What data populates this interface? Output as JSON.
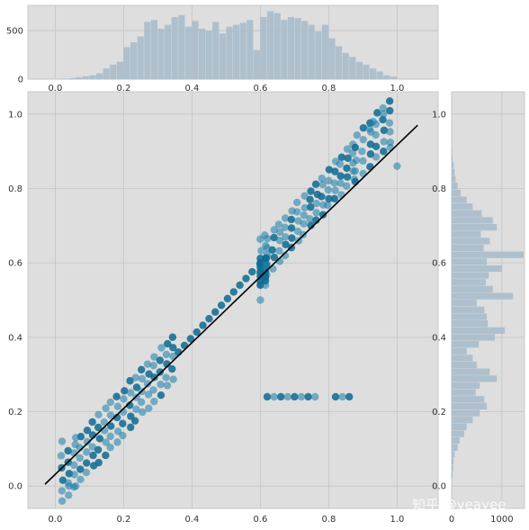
{
  "chart_data": [
    {
      "type": "bar",
      "role": "top-marginal-histogram",
      "xlim": [
        -0.08,
        1.12
      ],
      "ylim": [
        0,
        760
      ],
      "yticks": [
        0,
        500
      ],
      "xticks": [
        "0.0",
        "0.2",
        "0.4",
        "0.6",
        "0.8",
        "1.0"
      ],
      "bin_start": 0.02,
      "bin_width": 0.02,
      "values": [
        5,
        10,
        20,
        30,
        40,
        60,
        110,
        150,
        180,
        330,
        380,
        440,
        590,
        610,
        520,
        560,
        640,
        660,
        540,
        600,
        520,
        500,
        590,
        470,
        540,
        560,
        580,
        610,
        300,
        640,
        700,
        680,
        610,
        640,
        630,
        600,
        560,
        490,
        560,
        420,
        340,
        270,
        230,
        180,
        150,
        110,
        80,
        40,
        25
      ]
    },
    {
      "type": "scatter",
      "role": "main-scatter",
      "xlim": [
        -0.08,
        1.12
      ],
      "ylim": [
        -0.06,
        1.06
      ],
      "xticks": [
        "0.0",
        "0.2",
        "0.4",
        "0.6",
        "0.8",
        "1.0"
      ],
      "yticks": [
        "0.0",
        "0.2",
        "0.4",
        "0.6",
        "0.8",
        "1.0"
      ],
      "grid": true,
      "fit_line": {
        "x": [
          -0.03,
          1.06
        ],
        "y": [
          0.005,
          0.97
        ]
      },
      "clusters": [
        {
          "x0": 0.02,
          "x1": 0.36,
          "dy": 0.06,
          "step": 0.018
        },
        {
          "x0": 0.36,
          "x1": 0.58,
          "dy": 0.0,
          "step": 0.018
        },
        {
          "x0": 0.6,
          "x1": 0.62,
          "dy": 0.06,
          "step": 0.015
        },
        {
          "x0": 0.62,
          "x1": 0.88,
          "dy": 0.05,
          "step": 0.018
        },
        {
          "x0": 0.88,
          "x1": 0.98,
          "dy": 0.06,
          "step": 0.02
        }
      ],
      "outlier_row": {
        "y": 0.24,
        "x": [
          0.62,
          0.64,
          0.66,
          0.68,
          0.7,
          0.72,
          0.74,
          0.76,
          0.82,
          0.84,
          0.86
        ]
      },
      "extra_points": [
        [
          0.02,
          0.12
        ],
        [
          0.04,
          0.0
        ],
        [
          0.06,
          0.0
        ],
        [
          0.96,
          1.0
        ],
        [
          1.0,
          0.86
        ],
        [
          0.98,
          0.91
        ],
        [
          0.93,
          0.98
        ],
        [
          0.6,
          0.5
        ],
        [
          0.06,
          0.13
        ],
        [
          0.92,
          0.96
        ]
      ]
    },
    {
      "type": "bar",
      "role": "right-marginal-histogram",
      "orientation": "horizontal",
      "ylim": [
        -0.06,
        1.06
      ],
      "xlim": [
        0,
        1450
      ],
      "xticks": [
        0,
        1000
      ],
      "yticks": [
        "0.0",
        "0.2",
        "0.4",
        "0.6",
        "0.8",
        "1.0"
      ],
      "bin_start": 0.02,
      "bin_width": 0.0185,
      "values": [
        20,
        30,
        40,
        60,
        120,
        160,
        250,
        300,
        420,
        560,
        700,
        650,
        480,
        560,
        900,
        760,
        500,
        420,
        300,
        540,
        860,
        1060,
        720,
        700,
        650,
        500,
        1220,
        820,
        680,
        740,
        1000,
        700,
        1430,
        640,
        760,
        580,
        900,
        820,
        600,
        420,
        300,
        180,
        120,
        80,
        60,
        40,
        20,
        10
      ]
    }
  ],
  "watermark": "知乎 @yeayee"
}
